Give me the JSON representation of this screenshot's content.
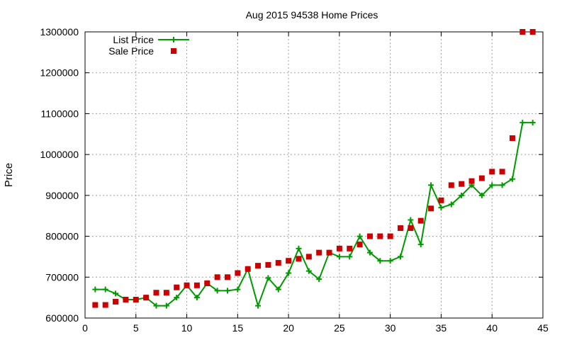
{
  "chart_data": {
    "type": "line",
    "title": "Aug 2015 94538 Home Prices",
    "xlabel": "",
    "ylabel": "Price",
    "xlim": [
      0,
      45
    ],
    "ylim": [
      600000,
      1300000
    ],
    "x_ticks": [
      "0",
      "5",
      "10",
      "15",
      "20",
      "25",
      "30",
      "35",
      "40",
      "45"
    ],
    "y_ticks": [
      "600000",
      "700000",
      "800000",
      "900000",
      "1000000",
      "1100000",
      "1200000",
      "1300000"
    ],
    "grid": true,
    "legend_position": "top-left",
    "series": [
      {
        "name": "List Price",
        "style": "line-plus",
        "color": "#009900",
        "x": [
          1,
          2,
          3,
          4,
          5,
          6,
          7,
          8,
          9,
          10,
          11,
          12,
          13,
          14,
          15,
          16,
          17,
          18,
          19,
          20,
          21,
          22,
          23,
          24,
          25,
          26,
          27,
          28,
          29,
          30,
          31,
          32,
          33,
          34,
          35,
          36,
          37,
          38,
          39,
          40,
          41,
          42,
          43,
          44
        ],
        "values": [
          670000,
          670000,
          660000,
          645000,
          645000,
          650000,
          630000,
          630000,
          650000,
          680000,
          650000,
          685000,
          667000,
          667000,
          670000,
          720000,
          630000,
          698000,
          670000,
          710000,
          770000,
          715000,
          695000,
          760000,
          750000,
          750000,
          800000,
          760000,
          740000,
          740000,
          750000,
          840000,
          780000,
          925000,
          870000,
          878000,
          900000,
          925000,
          900000,
          925000,
          925000,
          940000,
          1078000,
          1078000
        ]
      },
      {
        "name": "Sale Price",
        "style": "square",
        "color": "#cc0000",
        "x": [
          1,
          2,
          3,
          4,
          5,
          6,
          7,
          8,
          9,
          10,
          11,
          12,
          13,
          14,
          15,
          16,
          17,
          18,
          19,
          20,
          21,
          22,
          23,
          24,
          25,
          26,
          27,
          28,
          29,
          30,
          31,
          32,
          33,
          34,
          35,
          36,
          37,
          38,
          39,
          40,
          41,
          42,
          43,
          44
        ],
        "values": [
          632000,
          632000,
          640000,
          645000,
          645000,
          650000,
          662000,
          662000,
          675000,
          680000,
          680000,
          685000,
          700000,
          700000,
          710000,
          720000,
          728000,
          730000,
          735000,
          740000,
          745000,
          750000,
          760000,
          760000,
          770000,
          770000,
          780000,
          800000,
          800000,
          800000,
          820000,
          820000,
          838000,
          868000,
          888000,
          925000,
          928000,
          935000,
          942000,
          958000,
          958000,
          1040000,
          1300000,
          1300000
        ]
      }
    ]
  }
}
